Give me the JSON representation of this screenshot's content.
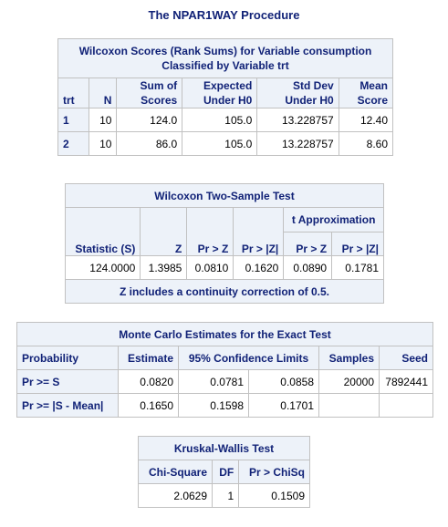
{
  "procedure_title": "The NPAR1WAY Procedure",
  "wilcoxon_scores": {
    "title_line1": "Wilcoxon Scores (Rank Sums) for Variable consumption",
    "title_line2": "Classified by Variable trt",
    "headers": {
      "trt": "trt",
      "n": "N",
      "sum_l1": "Sum of",
      "sum_l2": "Scores",
      "exp_l1": "Expected",
      "exp_l2": "Under H0",
      "std_l1": "Std Dev",
      "std_l2": "Under H0",
      "mean_l1": "Mean",
      "mean_l2": "Score"
    },
    "rows": [
      {
        "trt": "1",
        "n": "10",
        "sum": "124.0",
        "expected": "105.0",
        "stddev": "13.228757",
        "mean": "12.40"
      },
      {
        "trt": "2",
        "n": "10",
        "sum": "86.0",
        "expected": "105.0",
        "stddev": "13.228757",
        "mean": "8.60"
      }
    ]
  },
  "two_sample": {
    "title": "Wilcoxon Two-Sample Test",
    "t_approx_label": "t Approximation",
    "headers": [
      "Statistic (S)",
      "Z",
      "Pr > Z",
      "Pr > |Z|",
      "Pr > Z",
      "Pr > |Z|"
    ],
    "values": [
      "124.0000",
      "1.3985",
      "0.0810",
      "0.1620",
      "0.0890",
      "0.1781"
    ],
    "footnote": "Z includes a continuity correction of 0.5."
  },
  "monte_carlo": {
    "title": "Monte Carlo Estimates for the Exact Test",
    "headers": {
      "probability": "Probability",
      "estimate": "Estimate",
      "limits": "95% Confidence Limits",
      "samples": "Samples",
      "seed": "Seed"
    },
    "rows": [
      {
        "label": "Pr >= S",
        "estimate": "0.0820",
        "lower": "0.0781",
        "upper": "0.0858",
        "samples": "20000",
        "seed": "7892441"
      },
      {
        "label": "Pr >= |S - Mean|",
        "estimate": "0.1650",
        "lower": "0.1598",
        "upper": "0.1701",
        "samples": "",
        "seed": ""
      }
    ]
  },
  "kruskal_wallis": {
    "title": "Kruskal-Wallis Test",
    "headers": [
      "Chi-Square",
      "DF",
      "Pr > ChiSq"
    ],
    "values": [
      "2.0629",
      "1",
      "0.1509"
    ]
  },
  "colors": {
    "header_bg": "#edf2f9",
    "header_text": "#112277",
    "border": "#c1c1c1"
  }
}
